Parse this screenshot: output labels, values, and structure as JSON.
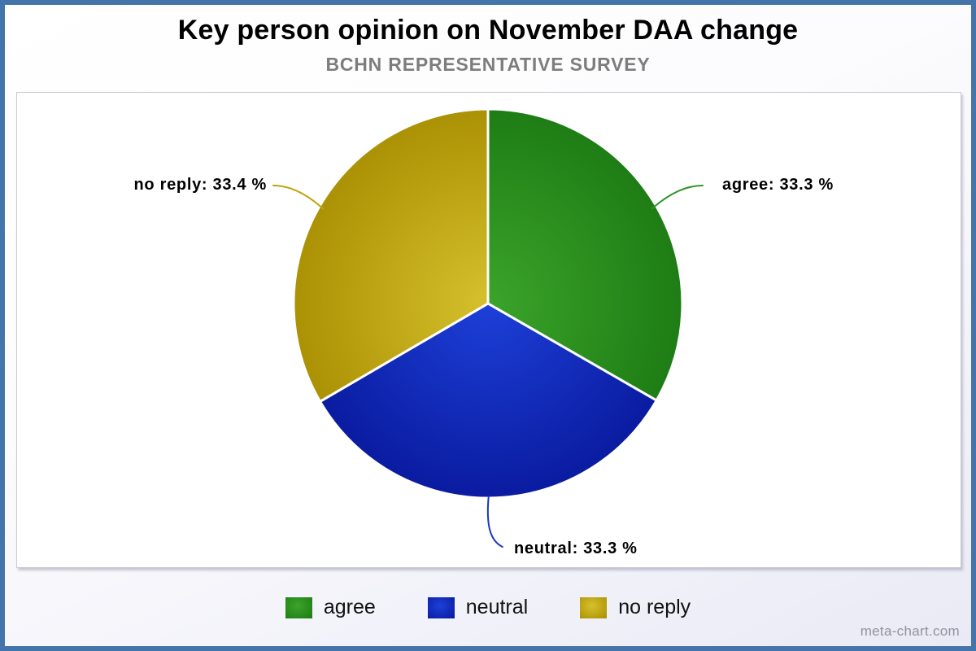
{
  "header": {
    "title": "Key person opinion on November DAA change",
    "subtitle": "BCHN REPRESENTATIVE SURVEY"
  },
  "watermark": "meta-chart.com",
  "chart_data": {
    "type": "pie",
    "title": "Key person opinion on November DAA change",
    "subtitle": "BCHN REPRESENTATIVE SURVEY",
    "start_angle_deg": -90,
    "direction": "clockwise",
    "legend_position": "bottom",
    "slice_separator_color": "#ffffff",
    "slices": [
      {
        "label": "agree",
        "value": 33.3,
        "display": "agree: 33.3 %",
        "color_light": "#3ba42a",
        "color_dark": "#1e7d15",
        "line_color": "#2f9428",
        "callout_side": "right"
      },
      {
        "label": "neutral",
        "value": 33.3,
        "display": "neutral: 33.3 %",
        "color_light": "#1d40d8",
        "color_dark": "#0a1ba0",
        "line_color": "#1b35cc",
        "callout_side": "bottom"
      },
      {
        "label": "no reply",
        "value": 33.4,
        "display": "no reply: 33.4 %",
        "color_light": "#d6c02c",
        "color_dark": "#ab9104",
        "line_color": "#bfa30a",
        "callout_side": "left"
      }
    ]
  }
}
